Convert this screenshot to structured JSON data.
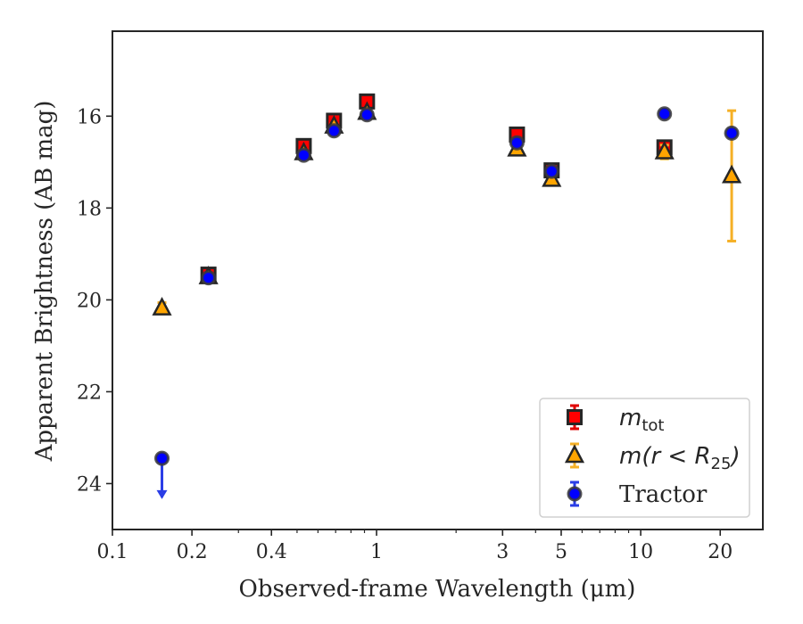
{
  "chart_data": {
    "type": "scatter",
    "xscale": "log",
    "yscale": "linear",
    "y_inverted": true,
    "xlabel": "Observed-frame Wavelength (μm)",
    "ylabel": "Apparent Brightness (AB mag)",
    "xlim": [
      0.1,
      29
    ],
    "ylim": [
      25.0,
      14.15
    ],
    "xticks": [
      {
        "value": 0.1,
        "label": "0.1"
      },
      {
        "value": 0.2,
        "label": "0.2"
      },
      {
        "value": 0.4,
        "label": "0.4"
      },
      {
        "value": 1,
        "label": "1"
      },
      {
        "value": 3,
        "label": "3"
      },
      {
        "value": 5,
        "label": "5"
      },
      {
        "value": 10,
        "label": "10"
      },
      {
        "value": 20,
        "label": "20"
      }
    ],
    "xminor": [
      0.3,
      0.5,
      0.6,
      0.7,
      0.8,
      0.9,
      2,
      4,
      6,
      7,
      8,
      9
    ],
    "yticks": [
      16,
      18,
      20,
      22,
      24
    ],
    "grid": false,
    "legend_position": "lower-right",
    "series": [
      {
        "name": "m_tot",
        "marker": "square",
        "color": "#ff0000",
        "error_color": "#e00000",
        "edge_color": "#262626",
        "points": [
          {
            "x": 0.231,
            "y": 19.45,
            "err": 0.05
          },
          {
            "x": 0.53,
            "y": 16.65,
            "err": 0.05
          },
          {
            "x": 0.69,
            "y": 16.1,
            "err": 0.05
          },
          {
            "x": 0.92,
            "y": 15.68,
            "err": 0.05
          },
          {
            "x": 3.4,
            "y": 16.4,
            "err": 0.05
          },
          {
            "x": 4.6,
            "y": 17.18,
            "err": 0.05
          },
          {
            "x": 12.3,
            "y": 16.68,
            "err": 0.1
          }
        ]
      },
      {
        "name": "m(r<R_25)",
        "marker": "triangle",
        "color": "#ffa500",
        "error_color": "#f5b026",
        "edge_color": "#262626",
        "points": [
          {
            "x": 0.154,
            "y": 20.18,
            "err": 0.12
          },
          {
            "x": 0.231,
            "y": 19.5,
            "err": 0.05
          },
          {
            "x": 0.53,
            "y": 16.8,
            "err": 0.05
          },
          {
            "x": 0.69,
            "y": 16.22,
            "err": 0.05
          },
          {
            "x": 0.92,
            "y": 15.92,
            "err": 0.05
          },
          {
            "x": 3.4,
            "y": 16.72,
            "err": 0.05
          },
          {
            "x": 4.6,
            "y": 17.38,
            "err": 0.05
          },
          {
            "x": 12.3,
            "y": 16.78,
            "err": 0.15
          },
          {
            "x": 22.1,
            "y": 17.3,
            "err": 1.42
          }
        ]
      },
      {
        "name": "Tractor",
        "marker": "circle",
        "color": "#0000ff",
        "error_color": "#2a3de6",
        "edge_color": "#3a3a3a",
        "points": [
          {
            "x": 0.154,
            "y": 23.45,
            "upper_limit": true
          },
          {
            "x": 0.231,
            "y": 19.52,
            "err": 0.05
          },
          {
            "x": 0.53,
            "y": 16.85,
            "err": 0.05
          },
          {
            "x": 0.69,
            "y": 16.32,
            "err": 0.05
          },
          {
            "x": 0.92,
            "y": 15.97,
            "err": 0.05
          },
          {
            "x": 3.4,
            "y": 16.58,
            "err": 0.05
          },
          {
            "x": 4.6,
            "y": 17.2,
            "err": 0.05
          },
          {
            "x": 12.3,
            "y": 15.95,
            "err": 0.05
          },
          {
            "x": 22.1,
            "y": 16.37,
            "err": 0.06
          }
        ]
      }
    ],
    "legend": [
      {
        "series": "m_tot",
        "label": "m",
        "sub": "tot"
      },
      {
        "series": "m(r<R_25)",
        "label": "m(r < R",
        "sub": "25",
        "suffix": ")"
      },
      {
        "series": "Tractor",
        "label": "Tractor"
      }
    ]
  }
}
